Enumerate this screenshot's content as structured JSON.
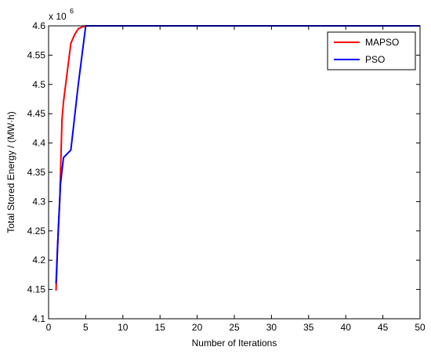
{
  "chart_data": {
    "type": "line",
    "xlabel": "Number of Iterations",
    "ylabel": "Total Stored Energy / (MW·h)",
    "exponent_base": "x 10",
    "exponent_power": "6",
    "xlim": [
      0,
      50
    ],
    "ylim": [
      4.1,
      4.6
    ],
    "x_ticks": [
      0,
      5,
      10,
      15,
      20,
      25,
      30,
      35,
      40,
      45,
      50
    ],
    "x_tick_labels": [
      "0",
      "5",
      "10",
      "15",
      "20",
      "25",
      "30",
      "35",
      "40",
      "45",
      "50"
    ],
    "y_ticks": [
      4.1,
      4.15,
      4.2,
      4.25,
      4.3,
      4.35,
      4.4,
      4.45,
      4.5,
      4.55,
      4.6
    ],
    "y_tick_labels": [
      "4.1",
      "4.15",
      "4.2",
      "4.25",
      "4.3",
      "4.35",
      "4.4",
      "4.45",
      "4.5",
      "4.55",
      "4.6"
    ],
    "grid": false,
    "legend_position": "top-right",
    "series": [
      {
        "name": "MAPSO",
        "color": "#ff0000",
        "x": [
          1,
          1.2,
          1.5,
          1.8,
          2,
          2.5,
          3,
          3.5,
          4,
          4.5,
          5,
          50
        ],
        "y": [
          4.148,
          4.22,
          4.3,
          4.44,
          4.47,
          4.52,
          4.57,
          4.585,
          4.595,
          4.598,
          4.6,
          4.6
        ]
      },
      {
        "name": "PSO",
        "color": "#0000ff",
        "x": [
          1,
          1.3,
          1.6,
          2,
          3,
          4,
          5,
          50
        ],
        "y": [
          4.16,
          4.25,
          4.33,
          4.375,
          4.388,
          4.5,
          4.6,
          4.6
        ]
      }
    ]
  }
}
